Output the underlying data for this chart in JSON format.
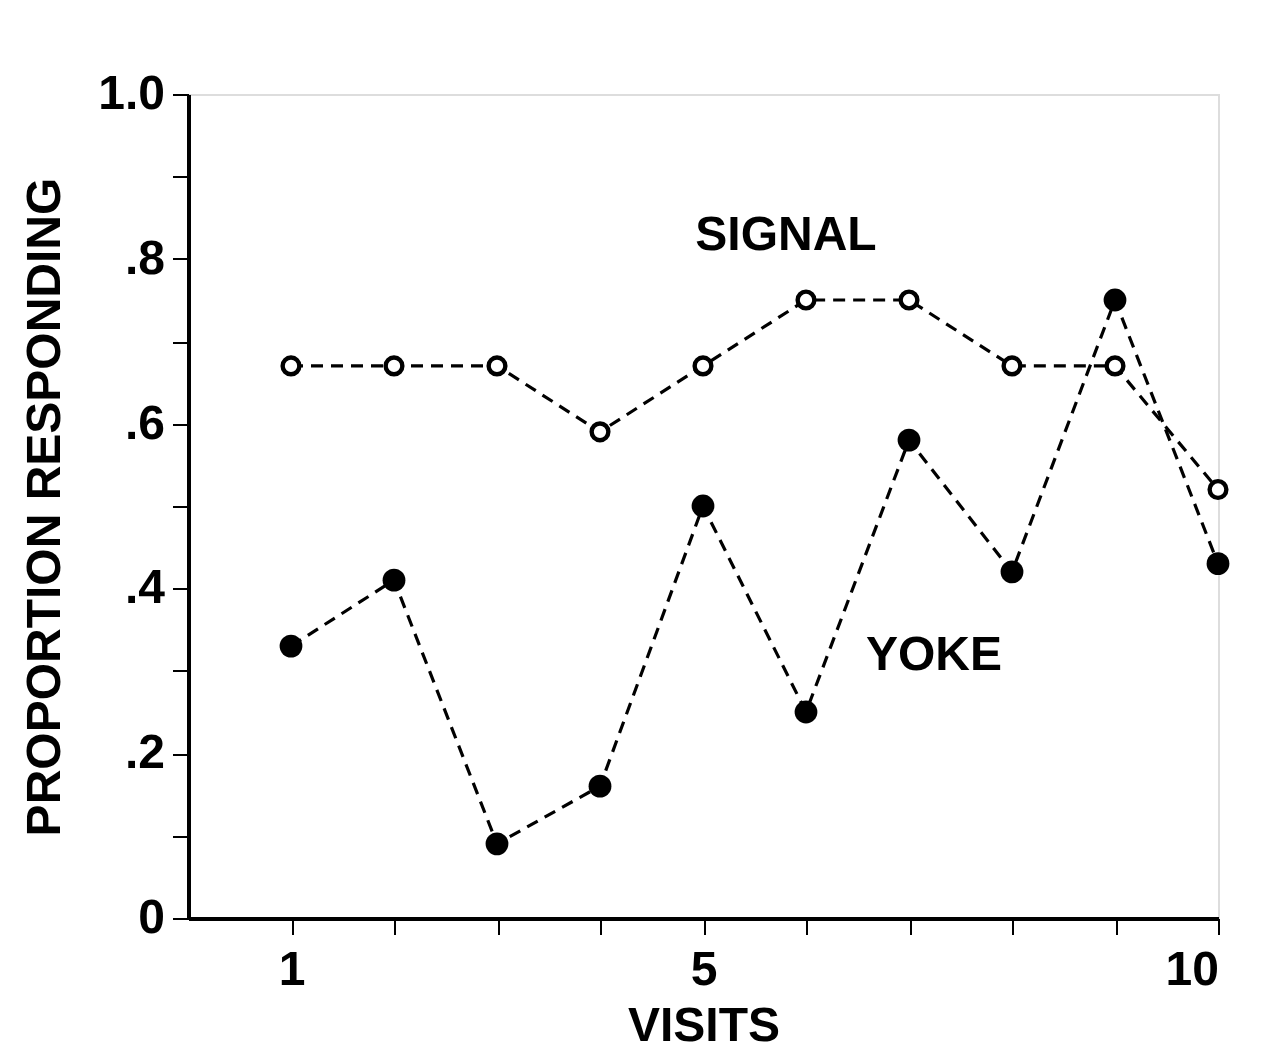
{
  "chart_data": {
    "type": "line",
    "xlabel": "VISITS",
    "ylabel": "PROPORTION RESPONDING",
    "x": [
      1,
      2,
      3,
      4,
      5,
      6,
      7,
      8,
      9,
      10
    ],
    "series": [
      {
        "name": "SIGNAL",
        "color": "#000000",
        "values": [
          0.67,
          0.67,
          0.67,
          0.59,
          0.67,
          0.75,
          0.75,
          0.67,
          0.67,
          0.52
        ]
      },
      {
        "name": "YOKE",
        "color": "#000000",
        "values": [
          0.33,
          0.41,
          0.09,
          0.16,
          0.5,
          0.25,
          0.58,
          0.42,
          0.75,
          0.43
        ]
      }
    ],
    "xlim": [
      0,
      10
    ],
    "xticks": [
      1,
      {
        "value": 2,
        "label": null
      },
      {
        "value": 3,
        "label": null
      },
      {
        "value": 4,
        "label": null
      },
      5,
      {
        "value": 6,
        "label": null
      },
      {
        "value": 7,
        "label": null
      },
      {
        "value": 8,
        "label": null
      },
      {
        "value": 9,
        "label": null
      },
      10
    ],
    "ylim": [
      0,
      1.0
    ],
    "yticks": [
      0,
      {
        "value": 0.1,
        "label": null
      },
      {
        "value": 0.2,
        "label": ".2"
      },
      {
        "value": 0.3,
        "label": null
      },
      {
        "value": 0.4,
        "label": ".4"
      },
      {
        "value": 0.5,
        "label": null
      },
      {
        "value": 0.6,
        "label": ".6"
      },
      {
        "value": 0.7,
        "label": null
      },
      {
        "value": 0.8,
        "label": ".8"
      },
      {
        "value": 0.9,
        "label": null
      },
      {
        "value": 1.0,
        "label": "1.0"
      }
    ],
    "grid": false,
    "legend": false,
    "marker": "circle",
    "line_style": "dashed"
  }
}
